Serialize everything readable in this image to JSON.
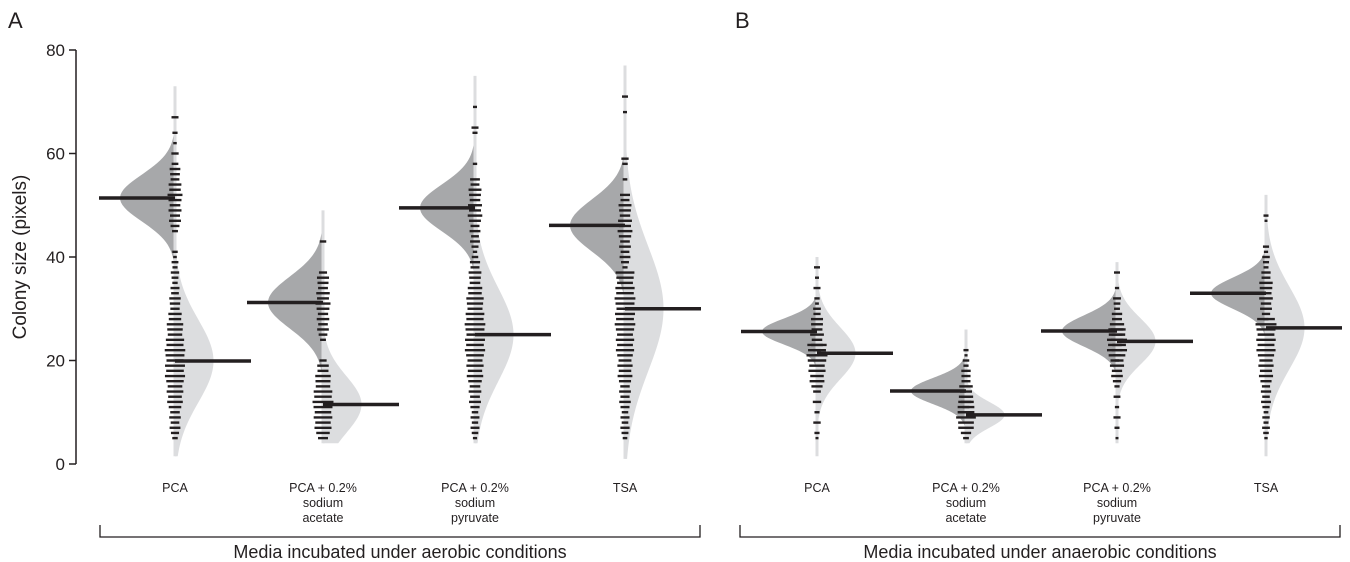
{
  "panels": [
    {
      "letter": "A",
      "group_label": "Media incubated under aerobic conditions"
    },
    {
      "letter": "B",
      "group_label": "Media incubated under anaerobic conditions"
    }
  ],
  "colors": {
    "mode1_fill": "#a7a8aa",
    "mode2_fill": "#dcdddf",
    "mark": "#231f20"
  },
  "chart_data": {
    "type": "violin",
    "ylabel": "Colony size (pixels)",
    "ylim": [
      0,
      80
    ],
    "yticks": [
      0,
      20,
      40,
      60,
      80
    ],
    "panels": [
      {
        "letter": "A",
        "condition": "aerobic",
        "categories": [
          {
            "label_lines": [
              "PCA"
            ],
            "range": [
              1.5,
              73
            ],
            "modes": [
              {
                "median": 51.4,
                "spread": 4.5,
                "points": [
                  45,
                  46,
                  47,
                  48,
                  49,
                  50,
                  51,
                  52,
                  53,
                  54,
                  55,
                  56,
                  57,
                  58,
                  60,
                  62,
                  64,
                  67
                ]
              },
              {
                "median": 19.9,
                "spread": 8,
                "points": [
                  5,
                  6,
                  7,
                  8,
                  9,
                  10,
                  11,
                  12,
                  13,
                  14,
                  15,
                  16,
                  17,
                  18,
                  19,
                  20,
                  21,
                  22,
                  23,
                  24,
                  25,
                  26,
                  27,
                  28,
                  29,
                  30,
                  31,
                  32,
                  33,
                  34,
                  35,
                  36,
                  37,
                  38,
                  39,
                  40,
                  41
                ]
              }
            ]
          },
          {
            "label_lines": [
              "PCA + 0.2%",
              "sodium",
              "acetate"
            ],
            "range": [
              4,
              49
            ],
            "modes": [
              {
                "median": 31.2,
                "spread": 5,
                "points": [
                  24,
                  25,
                  26,
                  27,
                  28,
                  29,
                  30,
                  31,
                  32,
                  33,
                  34,
                  35,
                  36,
                  37,
                  43
                ]
              },
              {
                "median": 11.5,
                "spread": 5.5,
                "points": [
                  5,
                  6,
                  7,
                  8,
                  9,
                  10,
                  11,
                  12,
                  13,
                  14,
                  15,
                  16,
                  17,
                  18,
                  19,
                  20
                ]
              }
            ]
          },
          {
            "label_lines": [
              "PCA + 0.2%",
              "sodium",
              "pyruvate"
            ],
            "range": [
              4,
              75
            ],
            "modes": [
              {
                "median": 49.5,
                "spread": 4.5,
                "points": [
                  41,
                  42,
                  43,
                  44,
                  45,
                  46,
                  47,
                  48,
                  49,
                  50,
                  51,
                  52,
                  53,
                  54,
                  55,
                  58,
                  64,
                  65,
                  69
                ]
              },
              {
                "median": 25.0,
                "spread": 9,
                "points": [
                  5,
                  6,
                  7,
                  8,
                  9,
                  10,
                  11,
                  12,
                  13,
                  14,
                  15,
                  16,
                  17,
                  18,
                  19,
                  20,
                  21,
                  22,
                  23,
                  24,
                  25,
                  26,
                  27,
                  28,
                  29,
                  30,
                  31,
                  32,
                  33,
                  34,
                  35,
                  36,
                  37,
                  38,
                  39,
                  40
                ]
              }
            ]
          },
          {
            "label_lines": [
              "TSA"
            ],
            "range": [
              1,
              77
            ],
            "modes": [
              {
                "median": 46.1,
                "spread": 5,
                "points": [
                  38,
                  39,
                  40,
                  41,
                  42,
                  43,
                  44,
                  45,
                  46,
                  47,
                  48,
                  49,
                  50,
                  51,
                  52,
                  55,
                  58,
                  59,
                  68,
                  71
                ]
              },
              {
                "median": 30.0,
                "spread": 12,
                "points": [
                  5,
                  6,
                  7,
                  8,
                  9,
                  10,
                  11,
                  12,
                  13,
                  14,
                  15,
                  16,
                  17,
                  18,
                  19,
                  20,
                  21,
                  22,
                  23,
                  24,
                  25,
                  26,
                  27,
                  28,
                  29,
                  30,
                  31,
                  32,
                  33,
                  34,
                  35,
                  36,
                  37
                ]
              }
            ]
          }
        ]
      },
      {
        "letter": "B",
        "condition": "anaerobic",
        "categories": [
          {
            "label_lines": [
              "PCA"
            ],
            "range": [
              1.5,
              40
            ],
            "modes": [
              {
                "median": 25.6,
                "spread": 2.5,
                "points": [
                  21,
                  22,
                  23,
                  24,
                  25,
                  26,
                  27,
                  28,
                  29,
                  30,
                  31,
                  32,
                  34,
                  36,
                  38
                ]
              },
              {
                "median": 21.4,
                "spread": 5,
                "points": [
                  5,
                  6,
                  8,
                  10,
                  12,
                  14,
                  15,
                  16,
                  17,
                  18,
                  19,
                  20,
                  21,
                  22,
                  23
                ]
              }
            ]
          },
          {
            "label_lines": [
              "PCA + 0.2%",
              "sodium",
              "acetate"
            ],
            "range": [
              4,
              26
            ],
            "modes": [
              {
                "median": 14.1,
                "spread": 2.5,
                "points": [
                  11,
                  12,
                  13,
                  14,
                  15,
                  16,
                  17,
                  18,
                  19,
                  20,
                  21,
                  22
                ]
              },
              {
                "median": 9.5,
                "spread": 2.5,
                "points": [
                  5,
                  6,
                  7,
                  8,
                  9,
                  10,
                  11,
                  12,
                  13
                ]
              }
            ]
          },
          {
            "label_lines": [
              "PCA + 0.2%",
              "sodium",
              "pyruvate"
            ],
            "range": [
              4,
              39
            ],
            "modes": [
              {
                "median": 25.7,
                "spread": 3,
                "points": [
                  20,
                  21,
                  22,
                  23,
                  24,
                  25,
                  26,
                  27,
                  28,
                  29,
                  30,
                  31,
                  32,
                  34,
                  37
                ]
              },
              {
                "median": 23.7,
                "spread": 4.5,
                "points": [
                  5,
                  7,
                  9,
                  11,
                  13,
                  15,
                  16,
                  17,
                  18,
                  19,
                  20,
                  21,
                  22,
                  23,
                  24,
                  25,
                  26
                ]
              }
            ]
          },
          {
            "label_lines": [
              "TSA"
            ],
            "range": [
              1.5,
              52
            ],
            "modes": [
              {
                "median": 33.0,
                "spread": 3,
                "points": [
                  28,
                  29,
                  30,
                  31,
                  32,
                  33,
                  34,
                  35,
                  36,
                  37,
                  38,
                  39,
                  40,
                  41,
                  42,
                  47,
                  48
                ]
              },
              {
                "median": 26.3,
                "spread": 8,
                "points": [
                  5,
                  6,
                  7,
                  8,
                  9,
                  10,
                  11,
                  12,
                  13,
                  14,
                  15,
                  16,
                  17,
                  18,
                  19,
                  20,
                  21,
                  22,
                  23,
                  24,
                  25,
                  26,
                  27,
                  28
                ]
              }
            ]
          }
        ]
      }
    ]
  }
}
